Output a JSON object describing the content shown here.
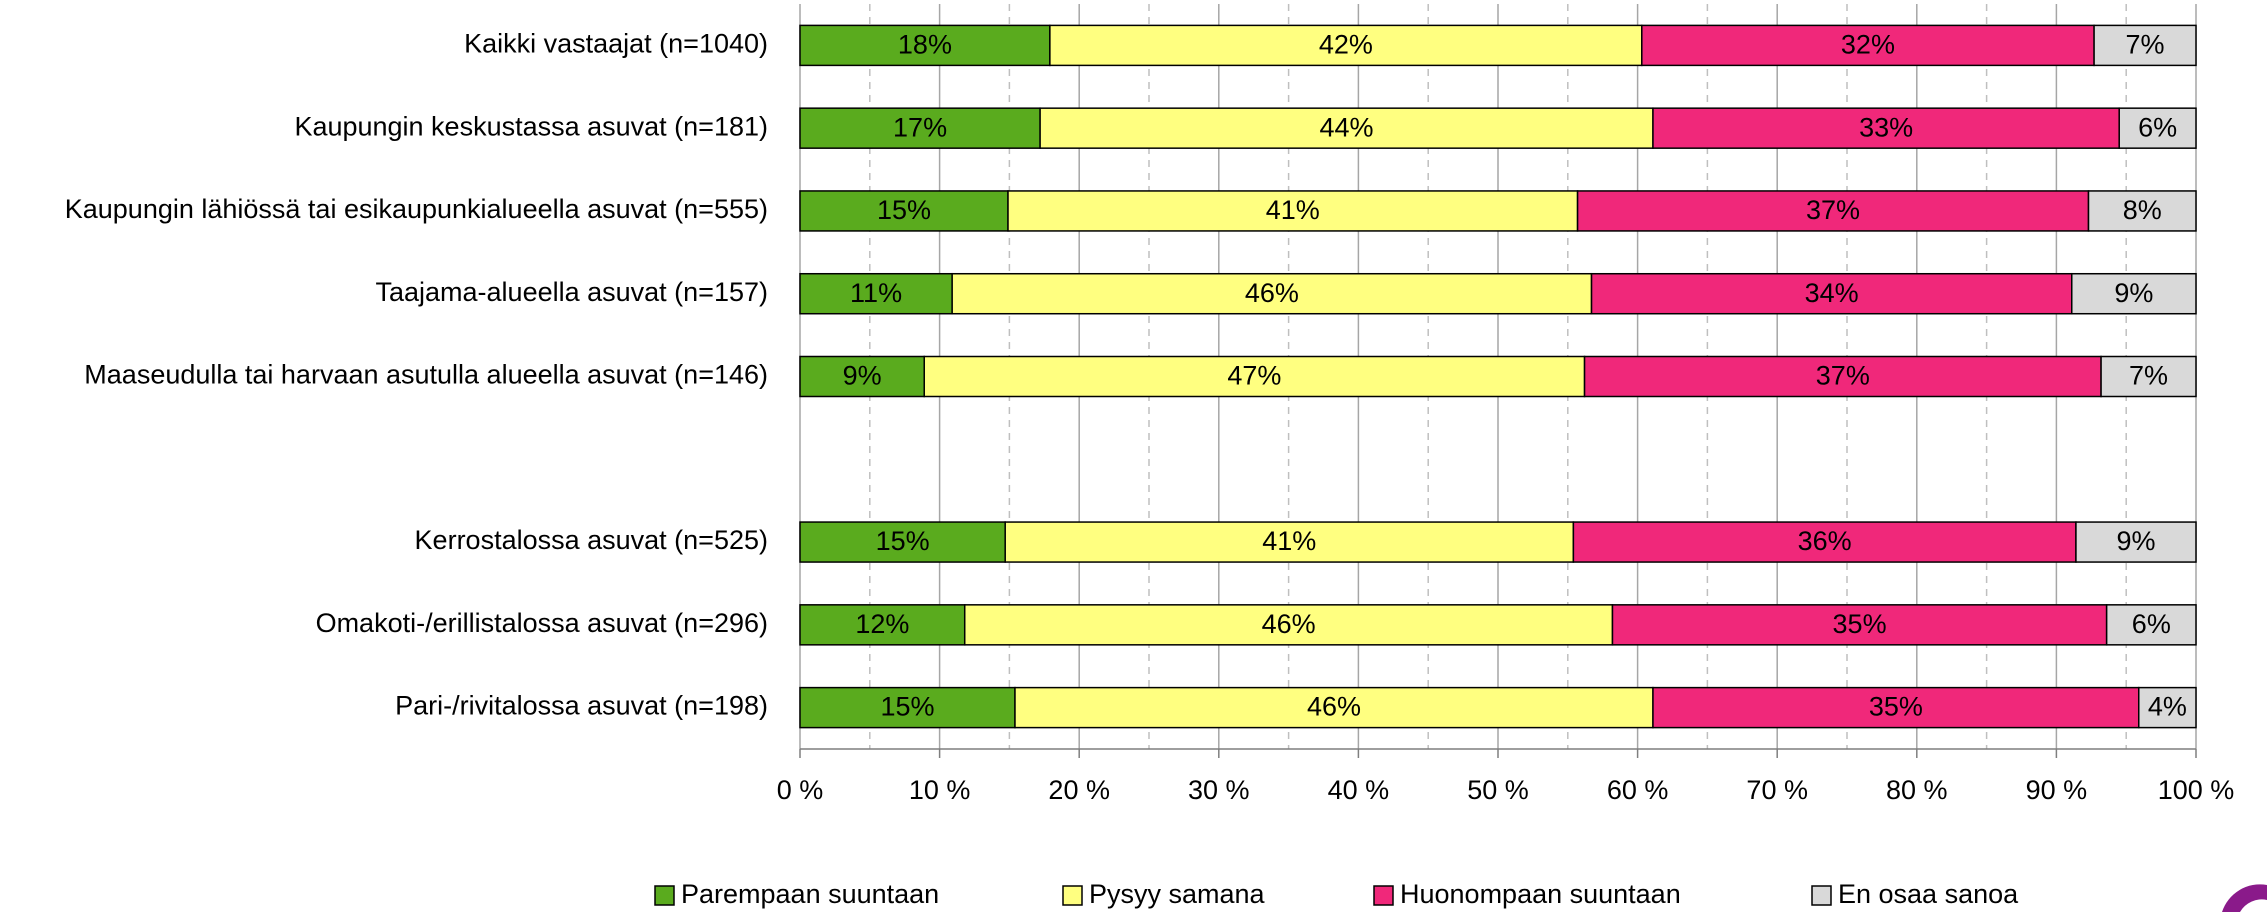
{
  "chart_data": {
    "type": "stacked_bar_horizontal",
    "categories": [
      "Kaikki vastaajat (n=1040)",
      "Kaupungin keskustassa asuvat (n=181)",
      "Kaupungin lähiössä tai esikaupunkialueella asuvat (n=555)",
      "Taajama-alueella asuvat (n=157)",
      "Maaseudulla tai harvaan asutulla alueella asuvat (n=146)",
      null,
      "Kerrostalossa asuvat (n=525)",
      "Omakoti-/erillistalossa asuvat (n=296)",
      "Pari-/rivitalossa asuvat (n=198)"
    ],
    "series": [
      {
        "name": "Parempaan suuntaan",
        "color": "#5aab1e",
        "values": [
          17.9,
          17.2,
          14.9,
          10.9,
          8.9,
          null,
          14.7,
          11.8,
          15.4
        ],
        "value_labels": [
          "18%",
          "17%",
          "15%",
          "11%",
          "9%",
          null,
          "15%",
          "12%",
          "15%"
        ]
      },
      {
        "name": "Pysyy samana",
        "color": "#ffff80",
        "values": [
          42.4,
          43.9,
          40.8,
          45.8,
          47.3,
          null,
          40.7,
          46.4,
          45.7
        ],
        "value_labels": [
          "42%",
          "44%",
          "41%",
          "46%",
          "47%",
          null,
          "41%",
          "46%",
          "46%"
        ]
      },
      {
        "name": "Huonompaan suuntaan",
        "color": "#f0287a",
        "values": [
          32.4,
          33.4,
          36.6,
          34.4,
          37.0,
          null,
          36.0,
          35.4,
          34.8
        ],
        "value_labels": [
          "32%",
          "33%",
          "37%",
          "34%",
          "37%",
          null,
          "36%",
          "35%",
          "35%"
        ]
      },
      {
        "name": "En osaa sanoa",
        "color": "#d9d9d9",
        "values": [
          7.3,
          5.5,
          7.7,
          8.9,
          6.8,
          null,
          8.6,
          6.4,
          4.1
        ],
        "value_labels": [
          "7%",
          "6%",
          "8%",
          "9%",
          "7%",
          null,
          "9%",
          "6%",
          "4%"
        ]
      }
    ],
    "xlim": [
      0,
      100
    ],
    "xticks": [
      {
        "value": 0,
        "label": "0 %"
      },
      {
        "value": 10,
        "label": "10 %"
      },
      {
        "value": 20,
        "label": "20 %"
      },
      {
        "value": 30,
        "label": "30 %"
      },
      {
        "value": 40,
        "label": "40 %"
      },
      {
        "value": 50,
        "label": "50 %"
      },
      {
        "value": 60,
        "label": "60 %"
      },
      {
        "value": 70,
        "label": "70 %"
      },
      {
        "value": 80,
        "label": "80 %"
      },
      {
        "value": 90,
        "label": "90 %"
      },
      {
        "value": 100,
        "label": "100 %"
      }
    ],
    "xticks_minor": [
      5,
      15,
      25,
      35,
      45,
      55,
      65,
      75,
      85,
      95
    ],
    "grid": true,
    "legend": "bottom"
  }
}
